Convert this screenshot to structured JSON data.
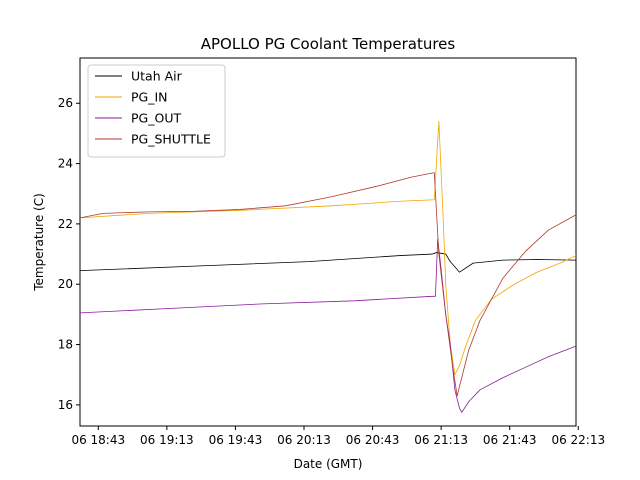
{
  "chart_data": {
    "type": "line",
    "title": "APOLLO PG Coolant Temperatures",
    "xlabel": "Date (GMT)",
    "ylabel": "Temperature (C)",
    "xlim": [
      0,
      217
    ],
    "ylim": [
      15.3,
      27.5
    ],
    "x_unit": "minutes after 06 18:35",
    "x_ticks": [
      {
        "value": 8,
        "label": "06 18:43"
      },
      {
        "value": 38,
        "label": "06 19:13"
      },
      {
        "value": 68,
        "label": "06 19:43"
      },
      {
        "value": 98,
        "label": "06 20:13"
      },
      {
        "value": 128,
        "label": "06 20:43"
      },
      {
        "value": 158,
        "label": "06 21:13"
      },
      {
        "value": 188,
        "label": "06 21:43"
      },
      {
        "value": 218,
        "label": "06 22:13"
      }
    ],
    "y_ticks": [
      16,
      18,
      20,
      22,
      24,
      26
    ],
    "legend_position": "upper left",
    "series": [
      {
        "name": "Utah Air",
        "color": "#000000",
        "x": [
          0,
          50,
          100,
          140,
          154,
          156,
          160,
          162,
          166,
          172,
          185,
          200,
          217
        ],
        "y": [
          20.45,
          20.6,
          20.75,
          20.95,
          21.0,
          21.05,
          21.0,
          20.75,
          20.4,
          20.7,
          20.8,
          20.82,
          20.8
        ]
      },
      {
        "name": "PG_IN",
        "color": "#f2a500",
        "x": [
          0,
          30,
          70,
          110,
          140,
          155,
          157,
          159,
          160,
          162,
          164,
          166,
          169,
          173,
          180,
          190,
          200,
          210,
          217
        ],
        "y": [
          22.2,
          22.35,
          22.45,
          22.6,
          22.75,
          22.8,
          25.4,
          22.0,
          20.0,
          18.0,
          17.0,
          17.3,
          18.0,
          18.8,
          19.5,
          20.0,
          20.4,
          20.7,
          20.95
        ]
      },
      {
        "name": "PG_OUT",
        "color": "#8b1a9e",
        "x": [
          0,
          40,
          80,
          120,
          154,
          155.5,
          156.5,
          158,
          160,
          162,
          164,
          166,
          167,
          170,
          175,
          185,
          195,
          205,
          217
        ],
        "y": [
          19.05,
          19.2,
          19.35,
          19.45,
          19.6,
          19.6,
          21.5,
          20.5,
          19.0,
          18.0,
          16.5,
          15.9,
          15.75,
          16.1,
          16.5,
          16.9,
          17.25,
          17.6,
          17.95
        ]
      },
      {
        "name": "PG_SHUTTLE",
        "color": "#b03a2e",
        "x": [
          0,
          10,
          30,
          50,
          70,
          90,
          110,
          130,
          145,
          155,
          157,
          160,
          163,
          165,
          167,
          170,
          175,
          185,
          195,
          205,
          217
        ],
        "y": [
          22.2,
          22.35,
          22.4,
          22.42,
          22.48,
          22.6,
          22.9,
          23.25,
          23.55,
          23.7,
          21.0,
          19.0,
          17.3,
          16.3,
          16.9,
          17.8,
          18.8,
          20.2,
          21.1,
          21.8,
          22.3
        ]
      }
    ]
  }
}
